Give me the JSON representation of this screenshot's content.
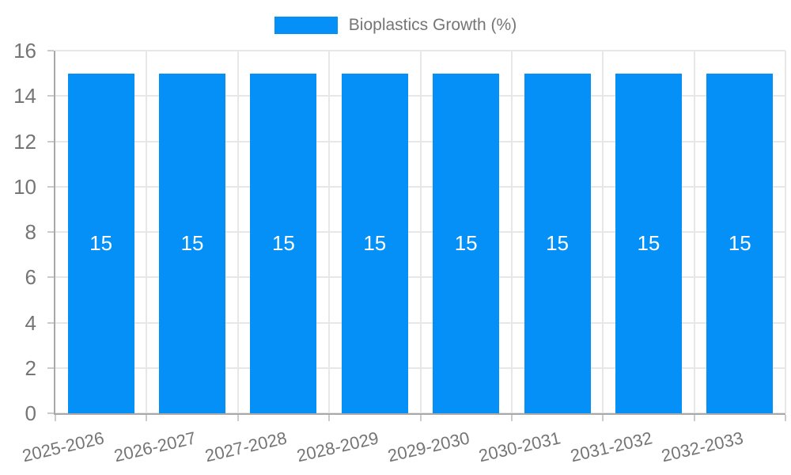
{
  "chart_data": {
    "type": "bar",
    "title": "",
    "legend": {
      "position": "top",
      "label": "Bioplastics Growth (%)"
    },
    "categories": [
      "2025-2026",
      "2026-2027",
      "2027-2028",
      "2028-2029",
      "2029-2030",
      "2030-2031",
      "2031-2032",
      "2032-2033"
    ],
    "series": [
      {
        "name": "Bioplastics Growth (%)",
        "values": [
          15,
          15,
          15,
          15,
          15,
          15,
          15,
          15
        ]
      }
    ],
    "bar_value_labels": [
      "15",
      "15",
      "15",
      "15",
      "15",
      "15",
      "15",
      "15"
    ],
    "xlabel": "",
    "ylabel": "",
    "ylim": [
      0,
      16
    ],
    "yticks": [
      0,
      2,
      4,
      6,
      8,
      10,
      12,
      14,
      16
    ],
    "grid": true,
    "colors": {
      "bar": "#0590F8",
      "tick_text": "#757575",
      "legend_text": "#757575",
      "bar_label_text": "#FFFFFF",
      "gridline": "#E7E7E7",
      "tick_mark": "#CBCBCB",
      "axis_line": "#A8A8A8",
      "background": "#FFFFFF"
    }
  }
}
